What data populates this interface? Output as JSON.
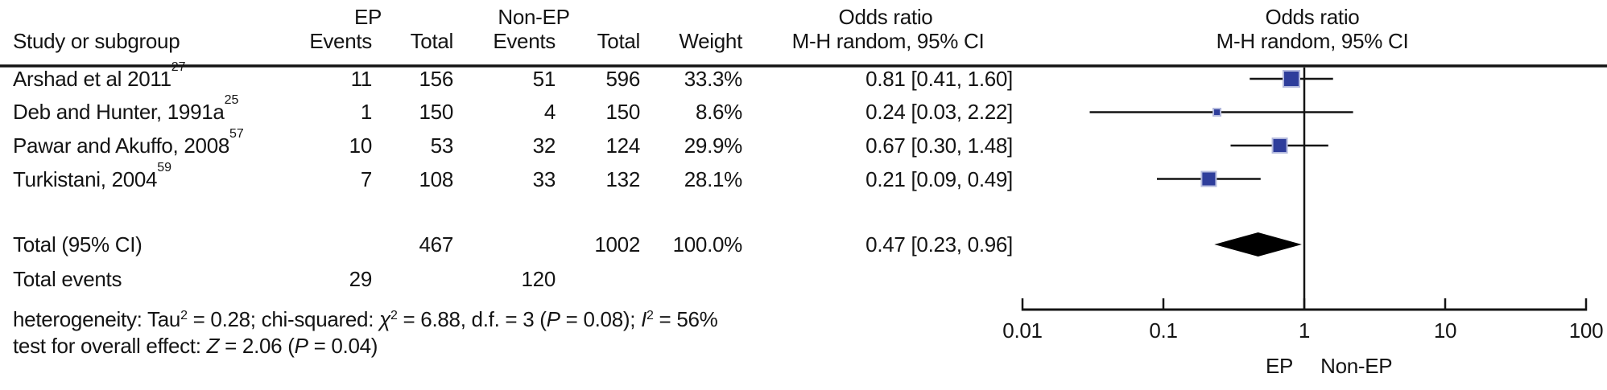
{
  "header": {
    "study_col": "Study or subgroup",
    "ep_group": "EP",
    "nonep_group": "Non-EP",
    "ep_events": "Events",
    "ep_total": "Total",
    "nonep_events": "Events",
    "nonep_total": "Total",
    "weight": "Weight",
    "or_col_line1": "Odds ratio",
    "or_col_line2": "M-H random, 95% CI",
    "plot_line1": "Odds ratio",
    "plot_line2": "M-H random, 95% CI"
  },
  "table": {
    "rows": [
      {
        "study": "Arshad et al 2011",
        "ref": "27",
        "ep_events": "11",
        "ep_total": "156",
        "nonep_events": "51",
        "nonep_total": "596",
        "weight": "33.3%",
        "or_ci": "0.81 [0.41, 1.60]"
      },
      {
        "study": "Deb and Hunter, 1991a",
        "ref": "25",
        "ep_events": "1",
        "ep_total": "150",
        "nonep_events": "4",
        "nonep_total": "150",
        "weight": "8.6%",
        "or_ci": "0.24 [0.03, 2.22]"
      },
      {
        "study": "Pawar and Akuffo, 2008",
        "ref": "57",
        "ep_events": "10",
        "ep_total": "53",
        "nonep_events": "32",
        "nonep_total": "124",
        "weight": "29.9%",
        "or_ci": "0.67 [0.30, 1.48]"
      },
      {
        "study": "Turkistani, 2004",
        "ref": "59",
        "ep_events": "7",
        "ep_total": "108",
        "nonep_events": "33",
        "nonep_total": "132",
        "weight": "28.1%",
        "or_ci": "0.21 [0.09, 0.49]"
      }
    ],
    "total_row": {
      "label": "Total (95% CI)",
      "ep_total": "467",
      "nonep_total": "1002",
      "weight": "100.0%",
      "or_ci": "0.47 [0.23, 0.96]"
    },
    "total_events_row": {
      "label": "Total events",
      "ep_events": "29",
      "nonep_events": "120"
    }
  },
  "footer": {
    "heterogeneity_segments": [
      {
        "t": "heterogeneity: Tau"
      },
      {
        "t": "2",
        "sup": true
      },
      {
        "t": " = 0.28; chi-squared: "
      },
      {
        "t": "χ",
        "it": true
      },
      {
        "t": "2",
        "sup": true
      },
      {
        "t": " = 6.88, d.f. = 3 ("
      },
      {
        "t": "P",
        "it": true
      },
      {
        "t": " = 0.08); "
      },
      {
        "t": "I",
        "it": true
      },
      {
        "t": "2",
        "sup": true
      },
      {
        "t": " = 56%"
      }
    ],
    "overall_effect_segments": [
      {
        "t": "test for overall effect: "
      },
      {
        "t": "Z",
        "it": true
      },
      {
        "t": " = 2.06 ("
      },
      {
        "t": "P",
        "it": true
      },
      {
        "t": " = 0.04)"
      }
    ]
  },
  "plot": {
    "tick_labels": [
      "0.01",
      "0.1",
      "1",
      "10",
      "100"
    ],
    "favours_left": "EP",
    "favours_right": "Non-EP",
    "marker_color": "#2e3d9b",
    "marker_border": "#b3b9dd",
    "line_color": "#141414",
    "diamond_color": "#000000"
  },
  "chart_data": {
    "type": "forest",
    "scale": "log10",
    "effect_measure": "Odds ratio",
    "method": "M-H random, 95% CI",
    "x_ticks": [
      0.01,
      0.1,
      1,
      10,
      100
    ],
    "xlim": [
      0.01,
      100
    ],
    "null_line": 1,
    "direction_labels": {
      "left_of_1": "EP",
      "right_of_1": "Non-EP"
    },
    "studies": [
      {
        "label": "Arshad et al 2011",
        "ref": "27",
        "ep_events": 11,
        "ep_total": 156,
        "nonep_events": 51,
        "nonep_total": 596,
        "weight_pct": 33.3,
        "or": 0.81,
        "ci_low": 0.41,
        "ci_high": 1.6
      },
      {
        "label": "Deb and Hunter, 1991a",
        "ref": "25",
        "ep_events": 1,
        "ep_total": 150,
        "nonep_events": 4,
        "nonep_total": 150,
        "weight_pct": 8.6,
        "or": 0.24,
        "ci_low": 0.03,
        "ci_high": 2.22
      },
      {
        "label": "Pawar and Akuffo, 2008",
        "ref": "57",
        "ep_events": 10,
        "ep_total": 53,
        "nonep_events": 32,
        "nonep_total": 124,
        "weight_pct": 29.9,
        "or": 0.67,
        "ci_low": 0.3,
        "ci_high": 1.48
      },
      {
        "label": "Turkistani, 2004",
        "ref": "59",
        "ep_events": 7,
        "ep_total": 108,
        "nonep_events": 33,
        "nonep_total": 132,
        "weight_pct": 28.1,
        "or": 0.21,
        "ci_low": 0.09,
        "ci_high": 0.49
      }
    ],
    "total": {
      "label": "Total (95% CI)",
      "ep_total": 467,
      "nonep_total": 1002,
      "weight_pct": 100.0,
      "or": 0.47,
      "ci_low": 0.23,
      "ci_high": 0.96
    },
    "total_events": {
      "ep": 29,
      "nonep": 120
    },
    "heterogeneity": {
      "tau2": 0.28,
      "chi2": 6.88,
      "df": 3,
      "p": 0.08,
      "i2_pct": 56
    },
    "overall_effect": {
      "z": 2.06,
      "p": 0.04
    }
  }
}
